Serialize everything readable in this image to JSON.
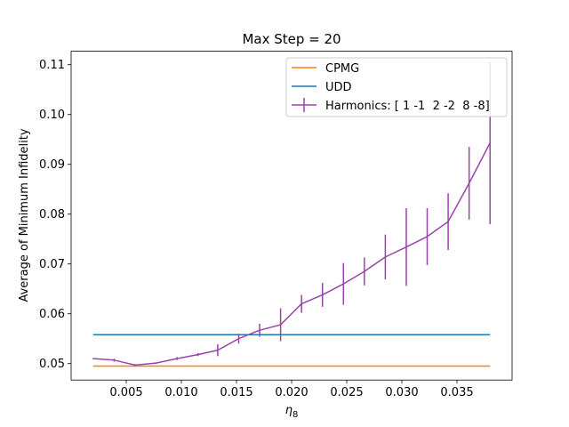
{
  "chart_data": {
    "type": "line",
    "title": "Max Step = 20",
    "xlabel_main": "η",
    "xlabel_sub": "8",
    "ylabel": "Average of Minimum Infidelity",
    "xlim": [
      0.0,
      0.04
    ],
    "ylim": [
      0.0467,
      0.1127
    ],
    "x_ticks": [
      0.005,
      0.01,
      0.015,
      0.02,
      0.025,
      0.03,
      0.035
    ],
    "x_tick_labels": [
      "0.005",
      "0.010",
      "0.015",
      "0.020",
      "0.025",
      "0.030",
      "0.035"
    ],
    "y_ticks": [
      0.05,
      0.06,
      0.07,
      0.08,
      0.09,
      0.1,
      0.11
    ],
    "y_tick_labels": [
      "0.05",
      "0.06",
      "0.07",
      "0.08",
      "0.09",
      "0.10",
      "0.11"
    ],
    "legend_position": "top-right",
    "colors": {
      "cpmg": "#ff7f0e",
      "udd": "#1f77b4",
      "harmonics": "#9745a8"
    },
    "series": [
      {
        "name": "CPMG",
        "key": "cpmg",
        "x": [
          0.002,
          0.038
        ],
        "y": [
          0.0495,
          0.0495
        ]
      },
      {
        "name": "UDD",
        "key": "udd",
        "x": [
          0.002,
          0.038
        ],
        "y": [
          0.0558,
          0.0558
        ]
      },
      {
        "name": "Harmonics: [ 1 -1  2 -2  8 -8]",
        "key": "harmonics",
        "x": [
          0.002,
          0.0039,
          0.0058,
          0.0077,
          0.0096,
          0.0115,
          0.0133,
          0.0152,
          0.0171,
          0.019,
          0.0209,
          0.0228,
          0.0247,
          0.0266,
          0.0285,
          0.0304,
          0.0323,
          0.0342,
          0.0361,
          0.038
        ],
        "y": [
          0.051,
          0.0507,
          0.0497,
          0.0501,
          0.051,
          0.0518,
          0.0527,
          0.055,
          0.0567,
          0.0578,
          0.062,
          0.0638,
          0.066,
          0.0685,
          0.0714,
          0.0734,
          0.0755,
          0.0785,
          0.0862,
          0.0943
        ],
        "err": [
          0.0,
          0.0003,
          0.0002,
          0.0,
          0.0003,
          0.0003,
          0.0012,
          0.001,
          0.0013,
          0.0033,
          0.0018,
          0.0024,
          0.0042,
          0.0028,
          0.0045,
          0.0078,
          0.0057,
          0.0057,
          0.0073,
          0.0163
        ]
      }
    ]
  }
}
